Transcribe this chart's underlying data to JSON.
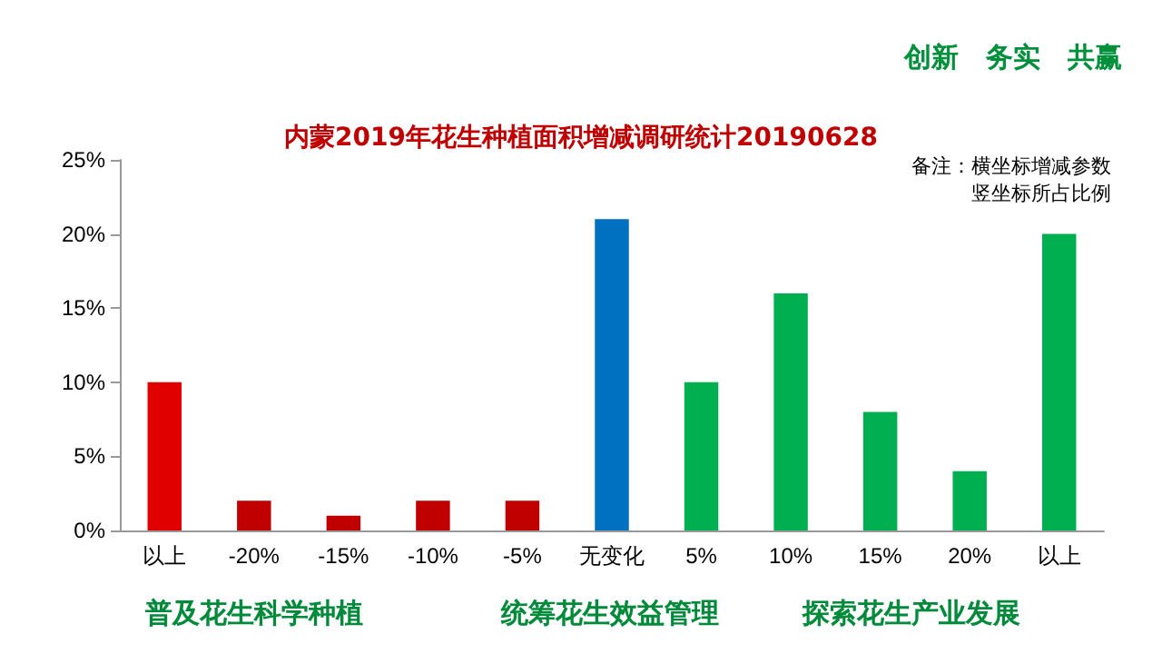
{
  "chart_data": {
    "type": "bar",
    "title": "内蒙2019年花生种植面积增减调研统计20190628",
    "categories": [
      "以上",
      "-20%",
      "-15%",
      "-10%",
      "-5%",
      "无变化",
      "5%",
      "10%",
      "15%",
      "20%",
      "以上"
    ],
    "values": [
      10,
      2,
      1,
      2,
      2,
      21,
      10,
      16,
      8,
      4,
      20
    ],
    "colors": [
      "#e00000",
      "#c00000",
      "#c00000",
      "#c00000",
      "#c00000",
      "#0070c0",
      "#00b050",
      "#00b050",
      "#00b050",
      "#00b050",
      "#00b050"
    ],
    "ylim": [
      0,
      25
    ],
    "yticks": [
      {
        "value": 0,
        "label": "0%"
      },
      {
        "value": 5,
        "label": "5%"
      },
      {
        "value": 10,
        "label": "10%"
      },
      {
        "value": 15,
        "label": "15%"
      },
      {
        "value": 20,
        "label": "20%"
      },
      {
        "value": 25,
        "label": "25%"
      }
    ],
    "grid": false,
    "annotations": [
      "备注：横坐标增减参数",
      "竖坐标所占比例",
      "创新　务实　共赢",
      "普及花生科学种植",
      "统筹花生效益管理",
      "探索花生产业发展"
    ]
  }
}
